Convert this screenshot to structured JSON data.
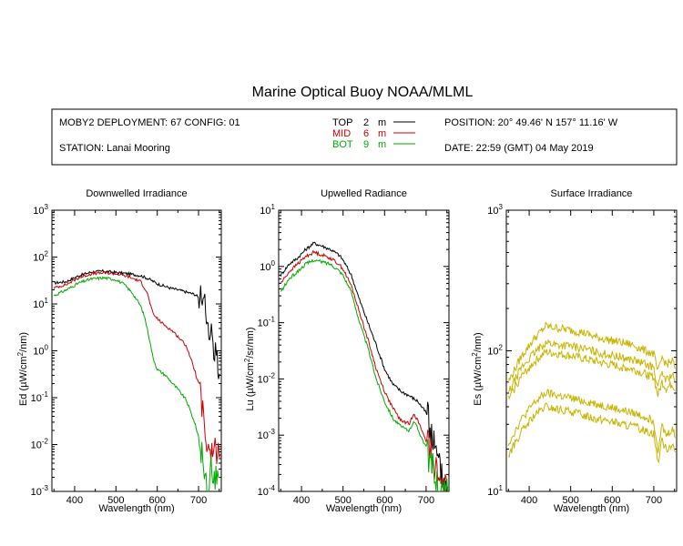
{
  "title": "Marine Optical Buoy NOAA/MLML",
  "info": {
    "deployment": "MOBY2 DEPLOYMENT: 67 CONFIG: 01",
    "station": "STATION: Lanai Mooring",
    "position": "POSITION: 20° 49.46' N   157° 11.16' W",
    "date": "DATE: 22:59 (GMT) 04 May 2019"
  },
  "legend": [
    {
      "label": "TOP",
      "depth": "2",
      "unit": "m",
      "color": "#000000"
    },
    {
      "label": "MID",
      "depth": "6",
      "unit": "m",
      "color": "#cc0000"
    },
    {
      "label": "BOT",
      "depth": "9",
      "unit": "m",
      "color": "#00aa00"
    }
  ],
  "chart_data": [
    {
      "type": "line",
      "title": "Downwelled Irradiance",
      "xlabel": "Wavelength (nm)",
      "ylabel_main": "Ed  (µW/cm",
      "ylabel_sup": "2",
      "ylabel_end": "/nm)",
      "xlim": [
        345,
        755
      ],
      "ylim": [
        0.001,
        1000
      ],
      "yscale": "log",
      "xticks": [
        400,
        500,
        600,
        700
      ],
      "yticks": [
        {
          "base": "10",
          "exp": "-3",
          "value": 0.001
        },
        {
          "base": "10",
          "exp": "-2",
          "value": 0.01
        },
        {
          "base": "10",
          "exp": "-1",
          "value": 0.1
        },
        {
          "base": "10",
          "exp": "0",
          "value": 1
        },
        {
          "base": "10",
          "exp": "1",
          "value": 10
        },
        {
          "base": "10",
          "exp": "2",
          "value": 100
        },
        {
          "base": "10",
          "exp": "3",
          "value": 1000
        }
      ],
      "series": [
        {
          "color": "#000000",
          "x": [
            350,
            380,
            410,
            440,
            470,
            500,
            530,
            560,
            580,
            600,
            630,
            660,
            690,
            705,
            715,
            725,
            735,
            745,
            752
          ],
          "y": [
            28,
            30,
            40,
            48,
            50,
            47,
            44,
            40,
            34,
            27,
            22,
            19,
            16,
            13,
            10,
            3,
            1.5,
            0.5,
            0.3
          ]
        },
        {
          "color": "#cc0000",
          "x": [
            350,
            380,
            410,
            440,
            470,
            500,
            530,
            560,
            575,
            590,
            610,
            640,
            670,
            690,
            700,
            710,
            720,
            730,
            740,
            752
          ],
          "y": [
            22,
            26,
            36,
            44,
            46,
            44,
            38,
            30,
            18,
            6,
            4,
            2.5,
            1.3,
            0.4,
            0.2,
            0.05,
            0.01,
            0.005,
            0.008,
            0.006
          ]
        },
        {
          "color": "#00aa00",
          "x": [
            350,
            380,
            410,
            440,
            470,
            500,
            520,
            540,
            560,
            570,
            580,
            590,
            600,
            620,
            650,
            670,
            690,
            700,
            710,
            720,
            730,
            740,
            752
          ],
          "y": [
            15,
            20,
            28,
            34,
            36,
            33,
            26,
            17,
            9,
            5,
            2,
            0.7,
            0.4,
            0.3,
            0.15,
            0.09,
            0.03,
            0.015,
            0.005,
            0.001,
            0.003,
            0.002,
            0.002
          ]
        }
      ]
    },
    {
      "type": "line",
      "title": "Upwelled Radiance",
      "xlabel": "Wavelength (nm)",
      "ylabel_main": "Lu  (µW/cm",
      "ylabel_sup": "2",
      "ylabel_end": "/sr/nm)",
      "xlim": [
        345,
        755
      ],
      "ylim": [
        0.0001,
        10
      ],
      "yscale": "log",
      "xticks": [
        400,
        500,
        600,
        700
      ],
      "yticks": [
        {
          "base": "10",
          "exp": "-4",
          "value": 0.0001
        },
        {
          "base": "10",
          "exp": "-3",
          "value": 0.001
        },
        {
          "base": "10",
          "exp": "-2",
          "value": 0.01
        },
        {
          "base": "10",
          "exp": "-1",
          "value": 0.1
        },
        {
          "base": "10",
          "exp": "0",
          "value": 1
        },
        {
          "base": "10",
          "exp": "1",
          "value": 10
        }
      ],
      "series": [
        {
          "color": "#000000",
          "x": [
            350,
            370,
            390,
            410,
            430,
            450,
            470,
            490,
            500,
            520,
            540,
            560,
            580,
            600,
            620,
            640,
            660,
            680,
            700,
            715,
            730,
            745,
            752
          ],
          "y": [
            0.7,
            1.1,
            1.4,
            2.0,
            2.6,
            2.3,
            2.0,
            1.6,
            1.3,
            0.7,
            0.25,
            0.1,
            0.04,
            0.015,
            0.008,
            0.006,
            0.005,
            0.004,
            0.0025,
            0.001,
            0.0003,
            0.00015,
            0.00012
          ]
        },
        {
          "color": "#cc0000",
          "x": [
            350,
            370,
            390,
            410,
            430,
            450,
            470,
            490,
            500,
            520,
            540,
            560,
            580,
            600,
            620,
            640,
            660,
            670,
            680,
            700,
            720,
            740,
            752
          ],
          "y": [
            0.5,
            0.8,
            1.1,
            1.5,
            1.8,
            1.6,
            1.4,
            1.1,
            0.9,
            0.45,
            0.15,
            0.05,
            0.015,
            0.006,
            0.003,
            0.0018,
            0.0016,
            0.0025,
            0.0018,
            0.0008,
            0.0003,
            0.00012,
            0.0001
          ]
        },
        {
          "color": "#00aa00",
          "x": [
            350,
            370,
            390,
            410,
            430,
            450,
            470,
            490,
            500,
            520,
            540,
            560,
            580,
            600,
            620,
            640,
            660,
            670,
            680,
            700,
            720,
            740,
            752
          ],
          "y": [
            0.35,
            0.6,
            0.8,
            1.1,
            1.3,
            1.2,
            1.1,
            0.85,
            0.7,
            0.35,
            0.1,
            0.035,
            0.01,
            0.004,
            0.002,
            0.0014,
            0.0012,
            0.0018,
            0.0013,
            0.0006,
            0.0002,
            0.0001,
            0.0001
          ]
        }
      ]
    },
    {
      "type": "line",
      "title": "Surface Irradiance",
      "xlabel": "Wavelength (nm)",
      "ylabel_main": "Es  (µW/cm",
      "ylabel_sup": "2",
      "ylabel_end": "/nm)",
      "xlim": [
        345,
        755
      ],
      "ylim": [
        10,
        1000
      ],
      "yscale": "log",
      "xticks": [
        400,
        500,
        600,
        700
      ],
      "yticks": [
        {
          "base": "10",
          "exp": "1",
          "value": 10
        },
        {
          "base": "10",
          "exp": "2",
          "value": 100
        },
        {
          "base": "10",
          "exp": "3",
          "value": 1000
        }
      ],
      "series": [
        {
          "color": "#c8b400",
          "x": [
            350,
            380,
            410,
            440,
            470,
            500,
            530,
            560,
            590,
            620,
            650,
            680,
            700,
            710,
            720,
            730,
            745,
            752
          ],
          "y": [
            60,
            90,
            120,
            150,
            145,
            140,
            135,
            125,
            120,
            115,
            110,
            100,
            95,
            70,
            90,
            80,
            85,
            75
          ]
        },
        {
          "color": "#c8b400",
          "x": [
            350,
            380,
            410,
            440,
            470,
            500,
            530,
            560,
            590,
            620,
            650,
            680,
            700,
            710,
            720,
            730,
            745,
            752
          ],
          "y": [
            50,
            75,
            95,
            115,
            110,
            108,
            104,
            98,
            94,
            90,
            86,
            80,
            76,
            55,
            70,
            62,
            68,
            60
          ]
        },
        {
          "color": "#c8b400",
          "x": [
            350,
            380,
            410,
            440,
            470,
            500,
            530,
            560,
            590,
            620,
            650,
            680,
            700,
            710,
            720,
            730,
            745,
            752
          ],
          "y": [
            45,
            65,
            82,
            98,
            95,
            92,
            88,
            84,
            80,
            77,
            74,
            68,
            65,
            48,
            60,
            54,
            58,
            52
          ]
        },
        {
          "color": "#c8b400",
          "x": [
            350,
            380,
            410,
            440,
            470,
            500,
            530,
            560,
            590,
            620,
            650,
            680,
            700,
            710,
            720,
            730,
            745,
            752
          ],
          "y": [
            22,
            32,
            42,
            50,
            48,
            46,
            44,
            42,
            40,
            38,
            36,
            34,
            32,
            20,
            29,
            25,
            28,
            24
          ]
        },
        {
          "color": "#c8b400",
          "x": [
            350,
            380,
            410,
            440,
            470,
            500,
            530,
            560,
            590,
            620,
            650,
            680,
            700,
            710,
            720,
            730,
            745,
            752
          ],
          "y": [
            18,
            26,
            34,
            40,
            38,
            37,
            35,
            33,
            32,
            30,
            29,
            27,
            26,
            16,
            23,
            20,
            22,
            19
          ]
        }
      ]
    }
  ]
}
